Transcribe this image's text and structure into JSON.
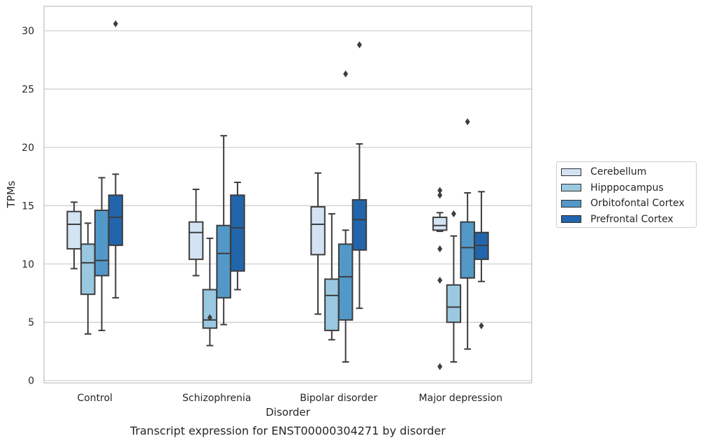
{
  "chart_data": {
    "type": "box",
    "caption": "Transcript expression for ENST00000304271 by disorder",
    "xlabel": "Disorder",
    "ylabel": "TPMs",
    "ylim": [
      -0.2,
      32.1
    ],
    "yticks": [
      0,
      5,
      10,
      15,
      20,
      25,
      30
    ],
    "y_tick_labels": [
      "0",
      "5",
      "10",
      "15",
      "20",
      "25",
      "30"
    ],
    "grid": "horizontal",
    "legend_position": "right",
    "categories": [
      "Control",
      "Schizophrenia",
      "Bipolar disorder",
      "Major depression"
    ],
    "series": [
      {
        "name": "Cerebellum",
        "color": "#d3e3f3",
        "boxes": [
          {
            "whisker_low": 9.6,
            "q1": 11.3,
            "median": 13.4,
            "q3": 14.5,
            "whisker_high": 15.3,
            "outliers": []
          },
          {
            "whisker_low": 9.0,
            "q1": 10.4,
            "median": 12.7,
            "q3": 13.6,
            "whisker_high": 16.4,
            "outliers": []
          },
          {
            "whisker_low": 5.7,
            "q1": 10.8,
            "median": 13.4,
            "q3": 14.9,
            "whisker_high": 17.8,
            "outliers": []
          },
          {
            "whisker_low": 12.8,
            "q1": 12.9,
            "median": 13.3,
            "q3": 14.0,
            "whisker_high": 14.4,
            "outliers": [
              16.3,
              15.9,
              11.3,
              8.6,
              1.2
            ]
          }
        ]
      },
      {
        "name": "Hipppocampus",
        "color": "#9ac8e1",
        "boxes": [
          {
            "whisker_low": 4.0,
            "q1": 7.4,
            "median": 10.1,
            "q3": 11.7,
            "whisker_high": 13.5,
            "outliers": []
          },
          {
            "whisker_low": 3.0,
            "q1": 4.5,
            "median": 5.2,
            "q3": 7.8,
            "whisker_high": 12.2,
            "outliers": [
              5.4
            ]
          },
          {
            "whisker_low": 3.5,
            "q1": 4.3,
            "median": 7.3,
            "q3": 8.7,
            "whisker_high": 14.3,
            "outliers": []
          },
          {
            "whisker_low": 1.6,
            "q1": 5.0,
            "median": 6.3,
            "q3": 8.2,
            "whisker_high": 12.4,
            "outliers": [
              14.3
            ]
          }
        ]
      },
      {
        "name": "Orbitofontal Cortex",
        "color": "#5299c9",
        "boxes": [
          {
            "whisker_low": 4.3,
            "q1": 9.0,
            "median": 10.3,
            "q3": 14.6,
            "whisker_high": 17.4,
            "outliers": []
          },
          {
            "whisker_low": 4.8,
            "q1": 7.1,
            "median": 10.9,
            "q3": 13.3,
            "whisker_high": 21.0,
            "outliers": []
          },
          {
            "whisker_low": 1.6,
            "q1": 5.2,
            "median": 8.9,
            "q3": 11.7,
            "whisker_high": 12.9,
            "outliers": [
              26.3
            ]
          },
          {
            "whisker_low": 2.7,
            "q1": 8.8,
            "median": 11.4,
            "q3": 13.6,
            "whisker_high": 16.1,
            "outliers": [
              22.2
            ]
          }
        ]
      },
      {
        "name": "Prefrontal Cortex",
        "color": "#2166ac",
        "boxes": [
          {
            "whisker_low": 7.1,
            "q1": 11.6,
            "median": 14.0,
            "q3": 15.9,
            "whisker_high": 17.7,
            "outliers": [
              30.6
            ]
          },
          {
            "whisker_low": 7.8,
            "q1": 9.4,
            "median": 13.1,
            "q3": 15.9,
            "whisker_high": 17.0,
            "outliers": []
          },
          {
            "whisker_low": 6.2,
            "q1": 11.2,
            "median": 13.8,
            "q3": 15.5,
            "whisker_high": 20.3,
            "outliers": [
              28.8
            ]
          },
          {
            "whisker_low": 8.5,
            "q1": 10.4,
            "median": 11.6,
            "q3": 12.7,
            "whisker_high": 16.2,
            "outliers": [
              4.7
            ]
          }
        ]
      }
    ]
  }
}
